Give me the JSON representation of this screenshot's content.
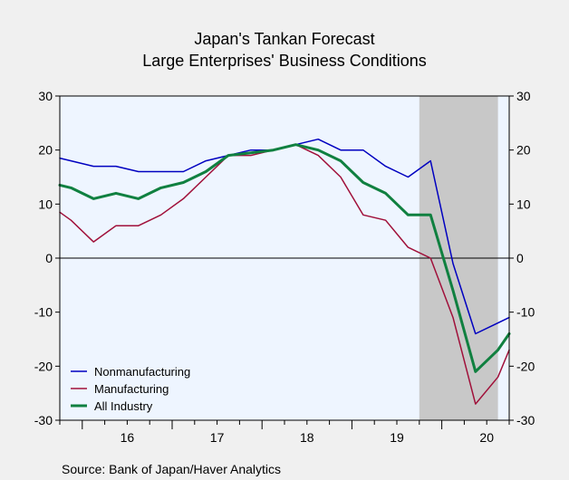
{
  "chart_data": {
    "type": "line",
    "title": "Japan's Tankan Forecast",
    "subtitle": "Large Enterprises' Business Conditions",
    "source": "Source:  Bank of Japan/Haver Analytics",
    "ylim": [
      -30,
      30
    ],
    "yticks": [
      30,
      20,
      10,
      0,
      -10,
      -20,
      -30
    ],
    "x_start_year": 2015.75,
    "x_end_year": 2020.75,
    "xtick_labels": [
      "16",
      "17",
      "18",
      "19",
      "20"
    ],
    "xtick_label_years": [
      2016.5,
      2017.5,
      2018.5,
      2019.5,
      2020.5
    ],
    "recession": {
      "start": 2019.75,
      "end": 2020.625
    },
    "plot_background": "#eef5ff",
    "recession_color": "#c8c8c8",
    "quarters": [
      2015.75,
      2016.0,
      2016.25,
      2016.5,
      2016.75,
      2017.0,
      2017.25,
      2017.5,
      2017.75,
      2018.0,
      2018.25,
      2018.5,
      2018.75,
      2019.0,
      2019.25,
      2019.5,
      2019.75,
      2020.0,
      2020.25,
      2020.5,
      2020.75
    ],
    "series": [
      {
        "name": "Nonmanufacturing",
        "color": "#0000c0",
        "width": 1.5,
        "x": [
          2015.75,
          2015.875,
          2016.125,
          2016.375,
          2016.625,
          2016.875,
          2017.125,
          2017.375,
          2017.625,
          2017.875,
          2018.125,
          2018.375,
          2018.625,
          2018.875,
          2019.125,
          2019.375,
          2019.625,
          2019.875,
          2020.125,
          2020.375,
          2020.625,
          2020.75
        ],
        "values": [
          18.5,
          18,
          17,
          17,
          16,
          16,
          16,
          18,
          19,
          20,
          20,
          21,
          22,
          20,
          20,
          17,
          15,
          18,
          -1,
          -14,
          -12,
          -11
        ]
      },
      {
        "name": "Manufacturing",
        "color": "#a0103a",
        "width": 1.5,
        "x": [
          2015.75,
          2015.875,
          2016.125,
          2016.375,
          2016.625,
          2016.875,
          2017.125,
          2017.375,
          2017.625,
          2017.875,
          2018.125,
          2018.375,
          2018.625,
          2018.875,
          2019.125,
          2019.375,
          2019.625,
          2019.875,
          2020.125,
          2020.375,
          2020.625,
          2020.75
        ],
        "values": [
          8.5,
          7,
          3,
          6,
          6,
          8,
          11,
          15,
          19,
          19,
          20,
          21,
          19,
          15,
          8,
          7,
          2,
          0,
          -11,
          -27,
          -22,
          -17
        ]
      },
      {
        "name": "All Industry",
        "color": "#108040",
        "width": 3,
        "x": [
          2015.75,
          2015.875,
          2016.125,
          2016.375,
          2016.625,
          2016.875,
          2017.125,
          2017.375,
          2017.625,
          2017.875,
          2018.125,
          2018.375,
          2018.625,
          2018.875,
          2019.125,
          2019.375,
          2019.625,
          2019.875,
          2020.125,
          2020.375,
          2020.625,
          2020.75
        ],
        "values": [
          13.5,
          13,
          11,
          12,
          11,
          13,
          14,
          16,
          19,
          19.5,
          20,
          21,
          20,
          18,
          14,
          12,
          8,
          8,
          -6,
          -21,
          -17,
          -14
        ]
      }
    ]
  }
}
